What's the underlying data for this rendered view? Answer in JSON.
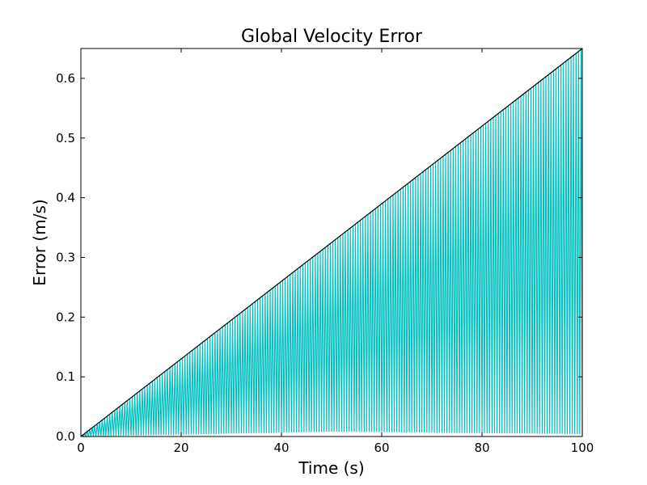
{
  "chart_data": {
    "type": "line",
    "title": "Global Velocity Error",
    "xlabel": "Time (s)",
    "ylabel": "Error (m/s)",
    "xlim": [
      0,
      100
    ],
    "ylim": [
      0,
      0.65
    ],
    "xticks": [
      0,
      20,
      40,
      60,
      80,
      100
    ],
    "xtick_labels": [
      "0",
      "20",
      "40",
      "60",
      "80",
      "100"
    ],
    "yticks": [
      0.0,
      0.1,
      0.2,
      0.3,
      0.4,
      0.5,
      0.6
    ],
    "ytick_labels": [
      "0.0",
      "0.1",
      "0.2",
      "0.3",
      "0.4",
      "0.5",
      "0.6"
    ],
    "grid": false,
    "series": [
      {
        "color": "#00bfbf",
        "style": "oscillating",
        "oscillation_period": 0.5,
        "envelope_upper": {
          "x": [
            0,
            100
          ],
          "y": [
            0,
            0.65
          ]
        },
        "envelope_lower": {
          "x": [
            0,
            50,
            100
          ],
          "y": [
            0,
            0.008,
            0.004
          ]
        }
      },
      {
        "color": "#000000",
        "style": "line",
        "x": [
          0,
          100
        ],
        "y": [
          0,
          0.65
        ]
      }
    ]
  }
}
